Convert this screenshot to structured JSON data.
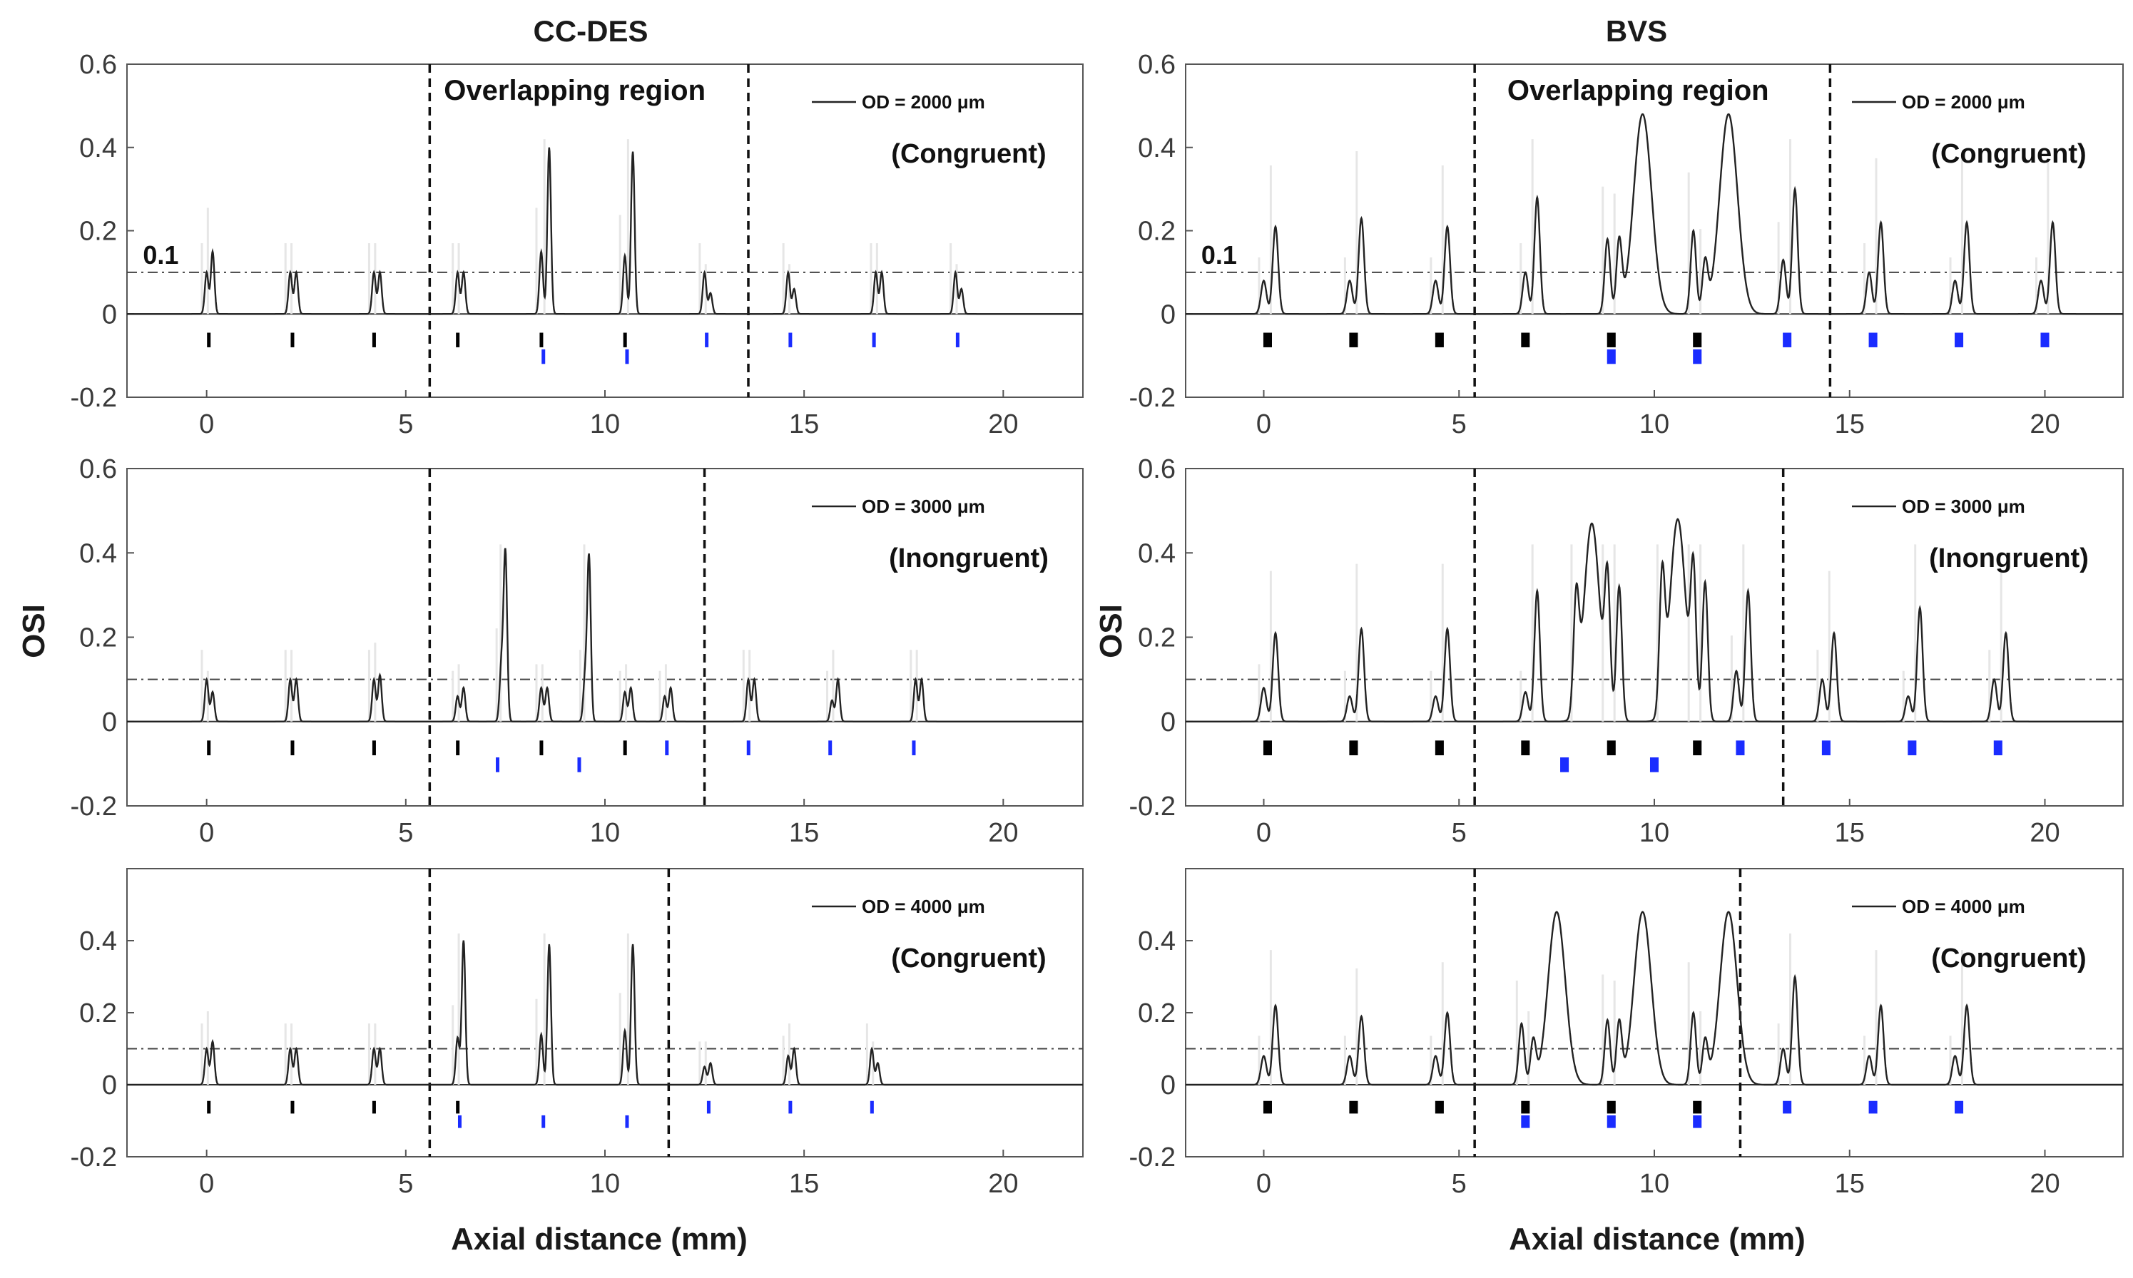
{
  "columns": [
    "CC-DES",
    "BVS"
  ],
  "ylabel": "OSI",
  "xlabel": "Axial distance (mm)",
  "threshold_label": "0.1",
  "overlap_label": "Overlapping region",
  "chart_data": [
    {
      "type": "line",
      "column": "CC-DES",
      "row": 1,
      "legend": "OD = 2000 μm",
      "condition": "(Congruent)",
      "xlim": [
        -2,
        22
      ],
      "ylim": [
        -0.2,
        0.6
      ],
      "xticks": [
        0,
        5,
        10,
        15,
        20
      ],
      "yticks": [
        -0.2,
        0,
        0.2,
        0.4,
        0.6
      ],
      "threshold": 0.1,
      "overlap_region": [
        5.6,
        13.6
      ],
      "show_overlap_label": true,
      "show_threshold_label": true,
      "peaks": [
        [
          0,
          0.1
        ],
        [
          0.15,
          0.15
        ],
        [
          2.1,
          0.1
        ],
        [
          2.25,
          0.1
        ],
        [
          4.2,
          0.1
        ],
        [
          4.35,
          0.1
        ],
        [
          6.3,
          0.1
        ],
        [
          6.45,
          0.1
        ],
        [
          8.4,
          0.15
        ],
        [
          8.6,
          0.4
        ],
        [
          10.5,
          0.14
        ],
        [
          10.7,
          0.39
        ],
        [
          12.5,
          0.1
        ],
        [
          12.65,
          0.05
        ],
        [
          14.6,
          0.1
        ],
        [
          14.75,
          0.06
        ],
        [
          16.8,
          0.1
        ],
        [
          16.95,
          0.1
        ],
        [
          18.8,
          0.1
        ],
        [
          18.95,
          0.06
        ]
      ],
      "peak_width": 0.045,
      "black_markers": [
        0.05,
        2.15,
        4.2,
        6.3,
        8.4,
        10.5
      ],
      "blue_markers_upper": [
        12.55,
        14.65,
        16.75,
        18.85
      ],
      "blue_markers_lower": [
        8.45,
        10.55
      ],
      "marker_w": 0.08
    },
    {
      "type": "line",
      "column": "CC-DES",
      "row": 2,
      "legend": "OD = 3000 μm",
      "condition": "(Inongruent)",
      "xlim": [
        -2,
        22
      ],
      "ylim": [
        -0.2,
        0.6
      ],
      "xticks": [
        0,
        5,
        10,
        15,
        20
      ],
      "yticks": [
        -0.2,
        0,
        0.2,
        0.4,
        0.6
      ],
      "threshold": 0.1,
      "overlap_region": [
        5.6,
        12.5
      ],
      "show_overlap_label": false,
      "show_threshold_label": false,
      "peaks": [
        [
          0,
          0.1
        ],
        [
          0.15,
          0.07
        ],
        [
          2.1,
          0.1
        ],
        [
          2.25,
          0.1
        ],
        [
          4.2,
          0.1
        ],
        [
          4.35,
          0.11
        ],
        [
          6.3,
          0.06
        ],
        [
          6.45,
          0.08
        ],
        [
          7.4,
          0.13
        ],
        [
          7.5,
          0.4
        ],
        [
          8.4,
          0.08
        ],
        [
          8.55,
          0.08
        ],
        [
          9.5,
          0.1
        ],
        [
          9.6,
          0.39
        ],
        [
          10.5,
          0.07
        ],
        [
          10.65,
          0.08
        ],
        [
          11.5,
          0.06
        ],
        [
          11.65,
          0.08
        ],
        [
          13.6,
          0.1
        ],
        [
          13.75,
          0.1
        ],
        [
          15.7,
          0.05
        ],
        [
          15.85,
          0.1
        ],
        [
          17.8,
          0.1
        ],
        [
          17.95,
          0.1
        ]
      ],
      "peak_width": 0.045,
      "black_markers": [
        0.05,
        2.15,
        4.2,
        6.3,
        8.4,
        10.5
      ],
      "blue_markers_upper": [
        11.55,
        13.6,
        15.65,
        17.75
      ],
      "blue_markers_lower": [
        7.3,
        9.35
      ],
      "marker_w": 0.08
    },
    {
      "type": "line",
      "column": "CC-DES",
      "row": 3,
      "legend": "OD = 4000 μm",
      "condition": "(Congruent)",
      "xlim": [
        -2,
        22
      ],
      "ylim": [
        -0.2,
        0.6
      ],
      "xticks": [
        0,
        5,
        10,
        15,
        20
      ],
      "yticks": [
        -0.2,
        0,
        0.2,
        0.4
      ],
      "threshold": 0.1,
      "overlap_region": [
        5.6,
        11.6
      ],
      "show_overlap_label": false,
      "show_threshold_label": false,
      "peaks": [
        [
          0,
          0.1
        ],
        [
          0.15,
          0.12
        ],
        [
          2.1,
          0.1
        ],
        [
          2.25,
          0.1
        ],
        [
          4.2,
          0.1
        ],
        [
          4.35,
          0.1
        ],
        [
          6.3,
          0.13
        ],
        [
          6.45,
          0.4
        ],
        [
          8.4,
          0.14
        ],
        [
          8.6,
          0.39
        ],
        [
          10.5,
          0.15
        ],
        [
          10.7,
          0.39
        ],
        [
          12.5,
          0.05
        ],
        [
          12.65,
          0.06
        ],
        [
          14.6,
          0.08
        ],
        [
          14.75,
          0.1
        ],
        [
          16.7,
          0.1
        ],
        [
          16.85,
          0.06
        ]
      ],
      "peak_width": 0.045,
      "black_markers": [
        0.05,
        2.15,
        4.2,
        6.3
      ],
      "blue_markers_upper": [
        12.6,
        14.65,
        16.7
      ],
      "blue_markers_lower": [
        6.35,
        8.45,
        10.55
      ],
      "marker_w": 0.08
    },
    {
      "type": "line",
      "column": "BVS",
      "row": 1,
      "legend": "OD = 2000 μm",
      "condition": "(Congruent)",
      "xlim": [
        -2,
        22
      ],
      "ylim": [
        -0.2,
        0.6
      ],
      "xticks": [
        0,
        5,
        10,
        15,
        20
      ],
      "yticks": [
        -0.2,
        0,
        0.2,
        0.4,
        0.6
      ],
      "threshold": 0.1,
      "overlap_region": [
        5.4,
        14.5
      ],
      "show_overlap_label": true,
      "show_threshold_label": true,
      "peaks": [
        [
          0,
          0.08
        ],
        [
          0.3,
          0.21
        ],
        [
          2.2,
          0.08
        ],
        [
          2.5,
          0.23
        ],
        [
          4.4,
          0.08
        ],
        [
          4.7,
          0.21
        ],
        [
          6.7,
          0.1
        ],
        [
          7.0,
          0.28
        ],
        [
          8.8,
          0.18
        ],
        [
          9.1,
          0.17
        ],
        [
          11.0,
          0.2
        ],
        [
          11.3,
          0.12
        ],
        [
          13.3,
          0.13
        ],
        [
          13.6,
          0.3
        ],
        [
          15.5,
          0.1
        ],
        [
          15.8,
          0.22
        ],
        [
          17.7,
          0.08
        ],
        [
          18.0,
          0.22
        ],
        [
          19.9,
          0.08
        ],
        [
          20.2,
          0.22
        ]
      ],
      "broad_peaks": [
        [
          9.7,
          0.48
        ],
        [
          11.9,
          0.48
        ]
      ],
      "peak_width": 0.07,
      "broad_width": 0.23,
      "black_markers": [
        0.1,
        2.3,
        4.5,
        6.7,
        8.9,
        11.1
      ],
      "blue_markers_upper": [
        13.4,
        15.6,
        17.8,
        20.0
      ],
      "blue_markers_lower": [
        8.9,
        11.1
      ],
      "marker_w": 0.22
    },
    {
      "type": "line",
      "column": "BVS",
      "row": 2,
      "legend": "OD = 3000 μm",
      "condition": "(Inongruent)",
      "xlim": [
        -2,
        22
      ],
      "ylim": [
        -0.2,
        0.6
      ],
      "xticks": [
        0,
        5,
        10,
        15,
        20
      ],
      "yticks": [
        -0.2,
        0,
        0.2,
        0.4,
        0.6
      ],
      "threshold": 0.1,
      "overlap_region": [
        5.4,
        13.3
      ],
      "show_overlap_label": false,
      "show_threshold_label": false,
      "peaks": [
        [
          0,
          0.08
        ],
        [
          0.3,
          0.21
        ],
        [
          2.2,
          0.06
        ],
        [
          2.5,
          0.22
        ],
        [
          4.4,
          0.06
        ],
        [
          4.7,
          0.22
        ],
        [
          6.7,
          0.07
        ],
        [
          7.0,
          0.31
        ],
        [
          8.0,
          0.26
        ],
        [
          8.8,
          0.31
        ],
        [
          9.1,
          0.32
        ],
        [
          10.2,
          0.31
        ],
        [
          11.0,
          0.33
        ],
        [
          11.3,
          0.33
        ],
        [
          12.1,
          0.12
        ],
        [
          12.4,
          0.31
        ],
        [
          14.3,
          0.1
        ],
        [
          14.6,
          0.21
        ],
        [
          16.5,
          0.06
        ],
        [
          16.8,
          0.27
        ],
        [
          18.7,
          0.1
        ],
        [
          19.0,
          0.21
        ]
      ],
      "broad_peaks": [
        [
          8.4,
          0.47
        ],
        [
          10.6,
          0.48
        ]
      ],
      "peak_width": 0.07,
      "broad_width": 0.2,
      "black_markers": [
        0.1,
        2.3,
        4.5,
        6.7,
        8.9,
        11.1
      ],
      "blue_markers_upper": [
        12.2,
        14.4,
        16.6,
        18.8
      ],
      "blue_markers_lower": [
        7.7,
        10.0
      ],
      "marker_w": 0.22
    },
    {
      "type": "line",
      "column": "BVS",
      "row": 3,
      "legend": "OD = 4000 μm",
      "condition": "(Congruent)",
      "xlim": [
        -2,
        22
      ],
      "ylim": [
        -0.2,
        0.6
      ],
      "xticks": [
        0,
        5,
        10,
        15,
        20
      ],
      "yticks": [
        -0.2,
        0,
        0.2,
        0.4
      ],
      "threshold": 0.1,
      "overlap_region": [
        5.4,
        12.2
      ],
      "show_overlap_label": false,
      "show_threshold_label": false,
      "peaks": [
        [
          0,
          0.08
        ],
        [
          0.3,
          0.22
        ],
        [
          2.2,
          0.08
        ],
        [
          2.5,
          0.19
        ],
        [
          4.4,
          0.08
        ],
        [
          4.7,
          0.2
        ],
        [
          6.6,
          0.17
        ],
        [
          6.9,
          0.12
        ],
        [
          8.8,
          0.18
        ],
        [
          9.1,
          0.17
        ],
        [
          11.0,
          0.2
        ],
        [
          11.3,
          0.12
        ],
        [
          13.3,
          0.1
        ],
        [
          13.6,
          0.3
        ],
        [
          15.5,
          0.08
        ],
        [
          15.8,
          0.22
        ],
        [
          17.7,
          0.08
        ],
        [
          18.0,
          0.22
        ]
      ],
      "broad_peaks": [
        [
          7.5,
          0.48
        ],
        [
          9.7,
          0.48
        ],
        [
          11.9,
          0.48
        ]
      ],
      "peak_width": 0.07,
      "broad_width": 0.22,
      "black_markers": [
        0.1,
        2.3,
        4.5,
        6.7,
        8.9,
        11.1
      ],
      "blue_markers_upper": [
        13.4,
        15.6,
        17.8
      ],
      "blue_markers_lower": [
        6.7,
        8.9,
        11.1
      ],
      "marker_w": 0.22
    }
  ]
}
